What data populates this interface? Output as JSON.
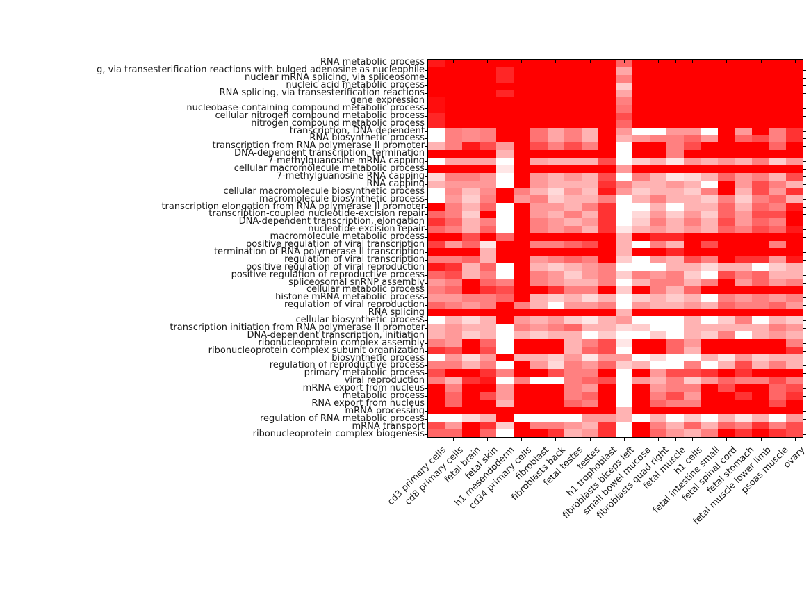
{
  "figure": {
    "background_color": "#ffffff",
    "axis_border_color": "#000000",
    "label_text_color": "#1a1a1a",
    "title": ""
  },
  "chart_data": {
    "type": "heatmap",
    "title": "",
    "xlabel": "",
    "ylabel": "",
    "grid": false,
    "legend": "none",
    "colormap": {
      "low_color": "#ffffff",
      "high_color": "#ff0000"
    },
    "value_range": [
      0,
      1
    ],
    "n_rows": 50,
    "n_cols": 22,
    "x_categories": [
      "cd3 primary cells",
      "cd8 primary cells",
      "fetal brain",
      "fetal skin",
      "h1 mesendoderm",
      "cd34 primary cells",
      "fibroblast",
      "fibroblasts back",
      "fetal testes",
      "testes",
      "h1 trophoblast",
      "fibroblasts biceps left",
      "small bowel mucosa",
      "fibroblasts quad right",
      "fetal muscle",
      "h1 cells",
      "fetal intestine small",
      "fetal spinal cord",
      "fetal stomach",
      "fetal muscle lower limb",
      "psoas muscle",
      "ovary"
    ],
    "y_categories": [
      "RNA metabolic process",
      "g, via transesterification reactions with bulged adenosine as nucleophile",
      "nuclear mRNA splicing, via spliceosome",
      "nucleic acid metabolic process",
      "RNA splicing, via transesterification reactions",
      "gene expression",
      "nucleobase-containing compound metabolic process",
      "cellular nitrogen compound metabolic process",
      "nitrogen compound metabolic process",
      "transcription, DNA-dependent",
      "RNA biosynthetic process",
      "transcription from RNA polymerase II promoter",
      "DNA-dependent transcription, termination",
      "7-methylguanosine mRNA capping",
      "cellular macromolecule metabolic process",
      "7-methylguanosine RNA capping",
      "RNA capping",
      "cellular macromolecule biosynthetic process",
      "macromolecule biosynthetic process",
      "transcription elongation from RNA polymerase II promoter",
      "transcription-coupled nucleotide-excision repair",
      "DNA-dependent transcription, elongation",
      "nucleotide-excision repair",
      "macromolecule metabolic process",
      "positive regulation of viral transcription",
      "termination of RNA polymerase II transcription",
      "regulation of viral transcription",
      "positive regulation of viral reproduction",
      "positive regulation of reproductive process",
      "spliceosomal snRNP assembly",
      "cellular metabolic process",
      "histone mRNA metabolic process",
      "regulation of viral reproduction",
      "RNA splicing",
      "cellular biosynthetic process",
      "transcription initiation from RNA polymerase II promoter",
      "DNA-dependent transcription, initiation",
      "ribonucleoprotein complex assembly",
      "ribonucleoprotein complex subunit organization",
      "biosynthetic process",
      "regulation of reproductive process",
      "primary metabolic process",
      "viral reproduction",
      "mRNA export from nucleus",
      "metabolic process",
      "RNA export from nucleus",
      "mRNA processing",
      "regulation of RNA metabolic process",
      "mRNA transport",
      "ribonucleoprotein complex biogenesis"
    ],
    "values": [
      [
        0.9,
        1,
        1,
        1,
        1,
        1,
        1,
        1,
        1,
        1,
        1,
        0.6,
        1,
        1,
        1,
        1,
        1,
        1,
        1,
        1,
        1,
        1
      ],
      [
        1,
        1,
        1,
        1,
        0.85,
        1,
        1,
        1,
        1,
        1,
        1,
        0.35,
        1,
        1,
        1,
        1,
        1,
        1,
        1,
        1,
        1,
        1
      ],
      [
        1,
        1,
        1,
        1,
        0.85,
        1,
        1,
        1,
        1,
        1,
        1,
        0.5,
        1,
        1,
        1,
        1,
        1,
        1,
        1,
        1,
        1,
        1
      ],
      [
        1,
        1,
        1,
        1,
        1,
        1,
        1,
        1,
        1,
        1,
        1,
        0.2,
        1,
        1,
        1,
        1,
        1,
        1,
        1,
        1,
        1,
        1
      ],
      [
        1,
        1,
        1,
        1,
        0.85,
        1,
        1,
        1,
        1,
        1,
        1,
        0.35,
        1,
        1,
        1,
        1,
        1,
        1,
        1,
        1,
        1,
        1
      ],
      [
        0.95,
        1,
        1,
        1,
        1,
        1,
        1,
        1,
        1,
        1,
        1,
        0.5,
        1,
        1,
        1,
        1,
        1,
        1,
        1,
        1,
        1,
        1
      ],
      [
        0.95,
        1,
        1,
        1,
        1,
        1,
        1,
        1,
        1,
        1,
        1,
        0.55,
        1,
        1,
        1,
        1,
        1,
        1,
        1,
        1,
        1,
        1
      ],
      [
        0.85,
        1,
        1,
        1,
        1,
        1,
        1,
        1,
        1,
        1,
        1,
        0.7,
        1,
        1,
        1,
        1,
        1,
        1,
        1,
        1,
        1,
        1
      ],
      [
        0.85,
        1,
        1,
        1,
        1,
        1,
        1,
        1,
        1,
        1,
        1,
        0.6,
        1,
        1,
        1,
        1,
        1,
        1,
        1,
        1,
        1,
        1
      ],
      [
        0,
        0.5,
        0.45,
        0.5,
        1,
        1,
        0.55,
        0.35,
        0.5,
        0.3,
        1,
        0.4,
        0,
        0,
        0.4,
        0.4,
        0,
        1,
        0.4,
        1,
        0.5,
        0.8
      ],
      [
        0,
        0.5,
        0.45,
        0.5,
        1,
        1,
        0.55,
        0.35,
        0.5,
        0.3,
        1,
        0.3,
        0.4,
        0.5,
        0.5,
        0.6,
        0.4,
        1,
        0.6,
        0.7,
        0.5,
        0.8
      ],
      [
        0.3,
        0.5,
        0.9,
        0.7,
        0.4,
        1,
        0.7,
        0.5,
        0.7,
        0.5,
        1,
        0,
        1,
        1,
        0.5,
        0.7,
        1,
        1,
        1,
        1,
        0.6,
        1
      ],
      [
        1,
        1,
        1,
        1,
        0.3,
        1,
        1,
        1,
        1,
        1,
        1,
        0,
        1,
        1,
        0.5,
        1,
        1,
        1,
        1,
        1,
        1,
        1
      ],
      [
        0,
        0.35,
        0.35,
        0.35,
        0,
        1,
        0.35,
        0.3,
        0.3,
        0.3,
        0.7,
        0,
        0.2,
        0.3,
        0.1,
        0.4,
        0.3,
        0.4,
        0.3,
        0.5,
        0.2,
        0.4
      ],
      [
        1,
        1,
        1,
        1,
        0.1,
        1,
        1,
        1,
        1,
        1,
        1,
        0.4,
        1,
        1,
        1,
        1,
        1,
        1,
        1,
        1,
        1,
        1
      ],
      [
        0.15,
        0.5,
        0.5,
        0.4,
        0,
        1,
        0.4,
        0.3,
        0.4,
        0.3,
        0.7,
        0,
        0.5,
        0.3,
        0.1,
        0.15,
        0.3,
        0.6,
        0.4,
        0.5,
        0.3,
        0.7
      ],
      [
        0.3,
        0.4,
        0.4,
        0.4,
        0,
        1,
        0.4,
        0.3,
        0.3,
        0.3,
        0.8,
        0.5,
        0.3,
        0.3,
        0.4,
        0.3,
        0,
        1,
        0.4,
        0.7,
        0.5,
        0.3
      ],
      [
        0,
        0.45,
        0.25,
        0.45,
        1,
        0.5,
        0.3,
        0.15,
        0.4,
        0.25,
        0.9,
        0.4,
        0.2,
        0.3,
        0.3,
        0.2,
        0.5,
        1,
        0.3,
        0.7,
        0.4,
        0.8
      ],
      [
        0,
        0.4,
        0.2,
        0.5,
        1,
        0.4,
        0.5,
        0.2,
        0.3,
        0.3,
        0.5,
        0,
        0.3,
        0.5,
        0.3,
        0.3,
        0.2,
        0.5,
        0.2,
        0.5,
        0.6,
        0.3
      ],
      [
        1,
        0.5,
        0.3,
        0.6,
        0,
        1,
        0.4,
        0.4,
        0.3,
        0.5,
        0.8,
        0,
        0,
        0.3,
        0,
        0.3,
        0.3,
        0.6,
        0.3,
        0.6,
        0.5,
        0.9
      ],
      [
        0.6,
        0.5,
        0.2,
        1,
        0,
        1,
        0.4,
        0.3,
        0.5,
        0.3,
        0.8,
        0,
        0.15,
        0.4,
        0.2,
        0.4,
        0.2,
        0.6,
        0.4,
        0.7,
        0.7,
        1
      ],
      [
        0.8,
        0.6,
        0.3,
        0.5,
        0,
        1,
        0.5,
        0.4,
        0.3,
        0.4,
        0.8,
        0,
        0.2,
        0.5,
        0.3,
        0.5,
        0.3,
        0.7,
        0.4,
        0.6,
        0.5,
        1
      ],
      [
        0.6,
        0.5,
        0.3,
        0.6,
        0,
        1,
        0.5,
        0.4,
        0.5,
        0.3,
        0.8,
        0.1,
        0.3,
        0.4,
        0.3,
        0.4,
        0.3,
        0.6,
        0.5,
        0.7,
        0.6,
        0.9
      ],
      [
        1,
        1,
        0.7,
        1,
        0.6,
        1,
        1,
        1,
        1,
        1,
        1,
        0.3,
        1,
        0.85,
        0.85,
        1,
        1,
        1,
        1,
        1,
        1,
        1
      ],
      [
        0.75,
        0.4,
        0.6,
        0.1,
        1,
        1,
        0.5,
        0.5,
        0.6,
        0.7,
        1,
        0.3,
        0,
        0.5,
        0.3,
        1,
        0.7,
        1,
        1,
        1,
        0.5,
        1
      ],
      [
        1,
        1,
        1,
        0.3,
        1,
        1,
        1,
        1,
        1,
        1,
        1,
        0.3,
        1,
        1,
        0.85,
        1,
        1,
        1,
        1,
        1,
        1,
        1
      ],
      [
        0.5,
        0.5,
        0.6,
        0.3,
        1,
        1,
        0.4,
        0.5,
        0.6,
        0.5,
        1,
        0.2,
        0,
        0.4,
        0.3,
        0.7,
        0.5,
        1,
        0.8,
        0.8,
        0.4,
        0.9
      ],
      [
        0.9,
        0.8,
        0.3,
        0.6,
        0,
        1,
        0.3,
        0.2,
        0.3,
        0.4,
        0.5,
        0,
        0,
        0,
        0.3,
        0.3,
        0.15,
        0.3,
        0.3,
        0,
        0.2,
        0.3
      ],
      [
        0.6,
        0.7,
        0.3,
        0.5,
        0,
        1,
        0.5,
        0.4,
        0.2,
        0.4,
        0.5,
        0.2,
        0.5,
        0.4,
        0.5,
        0.2,
        0,
        0.7,
        0.5,
        0.6,
        0.3,
        0.3
      ],
      [
        0.4,
        0.5,
        1,
        0.6,
        0.5,
        1,
        0.5,
        0.4,
        0.3,
        0.3,
        0.5,
        0,
        0.3,
        0.5,
        0.5,
        0.3,
        0.5,
        1,
        0.4,
        0.6,
        0.4,
        0.5
      ],
      [
        0.5,
        0.6,
        1,
        0.8,
        0.7,
        1,
        1,
        0.8,
        0.5,
        0.5,
        1,
        0.2,
        1,
        0.5,
        0.3,
        0.6,
        1,
        1,
        1,
        1,
        1,
        1
      ],
      [
        0.4,
        0.4,
        0.5,
        0.5,
        0.6,
        1,
        0.3,
        0.2,
        0.3,
        0.15,
        0.3,
        0,
        0.2,
        0.3,
        0.2,
        0.3,
        0,
        0.5,
        0.4,
        0.5,
        0.4,
        0.5
      ],
      [
        0.6,
        0.5,
        0.4,
        0.5,
        1,
        0.5,
        0.3,
        0,
        0.4,
        0.4,
        0.5,
        0,
        0.4,
        0.3,
        0.3,
        0.4,
        0.3,
        0.6,
        0.5,
        0.5,
        0.6,
        0.4
      ],
      [
        1,
        1,
        1,
        1,
        1,
        1,
        1,
        1,
        1,
        1,
        1,
        0.3,
        1,
        1,
        1,
        1,
        1,
        1,
        1,
        1,
        1,
        1
      ],
      [
        0,
        0.3,
        0.15,
        0.3,
        1,
        0.4,
        0.3,
        0.4,
        0.2,
        0.1,
        0.3,
        0.4,
        0,
        0,
        0,
        0.3,
        0,
        0.2,
        0.5,
        0,
        0.3,
        0.2
      ],
      [
        0.3,
        0.4,
        0.3,
        0.3,
        0,
        0.5,
        0.4,
        0.5,
        0.6,
        0.3,
        0.3,
        0.15,
        0.2,
        0,
        0,
        0.3,
        0.3,
        0.3,
        0.3,
        0.3,
        0.5,
        0.4
      ],
      [
        0.3,
        0.4,
        0.2,
        0.3,
        0,
        0.3,
        0.2,
        0.3,
        0.3,
        0,
        0.2,
        0,
        0,
        0.2,
        0,
        0.3,
        0.2,
        0.5,
        0,
        0.3,
        0.4,
        0.3
      ],
      [
        0.5,
        0.4,
        1,
        0.6,
        0,
        1,
        1,
        1,
        0.3,
        0.5,
        0.7,
        0.1,
        1,
        1,
        0.6,
        0.4,
        1,
        1,
        1,
        1,
        1,
        0.5
      ],
      [
        0.8,
        0.7,
        1,
        0.7,
        0,
        1,
        1,
        1,
        0.3,
        0.6,
        0.7,
        0,
        1,
        1,
        0.6,
        0.3,
        1,
        1,
        1,
        1,
        1,
        0.8
      ],
      [
        0,
        0.4,
        0.15,
        0.4,
        1,
        0.3,
        0.3,
        0.2,
        0.4,
        0.1,
        0.4,
        0.4,
        0,
        0.15,
        0,
        0,
        0.3,
        0.1,
        0.4,
        0.2,
        0.3,
        0.3
      ],
      [
        0.5,
        0.5,
        0.3,
        0.5,
        0,
        1,
        0.4,
        0.15,
        0.5,
        0.4,
        0.6,
        0.2,
        0.3,
        0,
        0,
        0.5,
        0,
        0.3,
        0.7,
        0.3,
        0.5,
        0.3
      ],
      [
        0.7,
        1,
        1,
        0.8,
        0.5,
        1,
        1,
        0.7,
        0.5,
        0.5,
        1,
        0,
        1,
        0.4,
        0.7,
        0.7,
        0.8,
        1,
        0.8,
        1,
        1,
        1
      ],
      [
        0.5,
        0.3,
        0.8,
        0.9,
        0,
        0.5,
        0,
        0,
        0.5,
        0.6,
        0.7,
        0,
        0.4,
        0.3,
        0.5,
        0.2,
        0.4,
        0.6,
        0.5,
        0.5,
        0.7,
        0.5
      ],
      [
        1,
        0.5,
        1,
        1,
        0.4,
        1,
        1,
        1,
        0.5,
        0.4,
        1,
        0,
        1,
        0.4,
        0.5,
        0.5,
        1,
        0.7,
        1,
        1,
        0.6,
        0.7
      ],
      [
        1,
        0.6,
        1,
        0.7,
        0.4,
        1,
        1,
        1,
        0.5,
        0.6,
        1,
        0,
        1,
        0.5,
        0.7,
        0.4,
        1,
        1,
        0.8,
        1,
        0.6,
        0.8
      ],
      [
        1,
        0.6,
        1,
        1,
        0.3,
        1,
        1,
        1,
        0.6,
        0.5,
        1,
        0,
        1,
        0.6,
        0.5,
        0.5,
        1,
        1,
        1,
        1,
        0.7,
        1
      ],
      [
        1,
        1,
        1,
        1,
        1,
        1,
        1,
        1,
        1,
        1,
        1,
        0.3,
        1,
        1,
        1,
        1,
        1,
        1,
        1,
        1,
        1,
        1
      ],
      [
        0,
        0,
        0.15,
        0.3,
        1,
        0,
        0,
        0,
        0,
        0.4,
        0.4,
        0.3,
        0,
        0.3,
        0,
        0.2,
        0,
        0.3,
        0.1,
        0.3,
        0,
        0.4
      ],
      [
        0.7,
        0.4,
        1,
        0.8,
        0.2,
        1,
        0.5,
        0.5,
        0.4,
        0.3,
        0.8,
        0,
        1,
        0.5,
        0.3,
        0.6,
        0.3,
        0.6,
        0.5,
        0.8,
        0.5,
        0.7
      ],
      [
        0.6,
        0.6,
        1,
        0.6,
        0,
        1,
        1,
        0.8,
        0.3,
        0.4,
        0.8,
        0,
        1,
        0.6,
        0.4,
        0.3,
        0.5,
        1,
        0.8,
        1,
        0.8,
        0.7
      ]
    ]
  }
}
